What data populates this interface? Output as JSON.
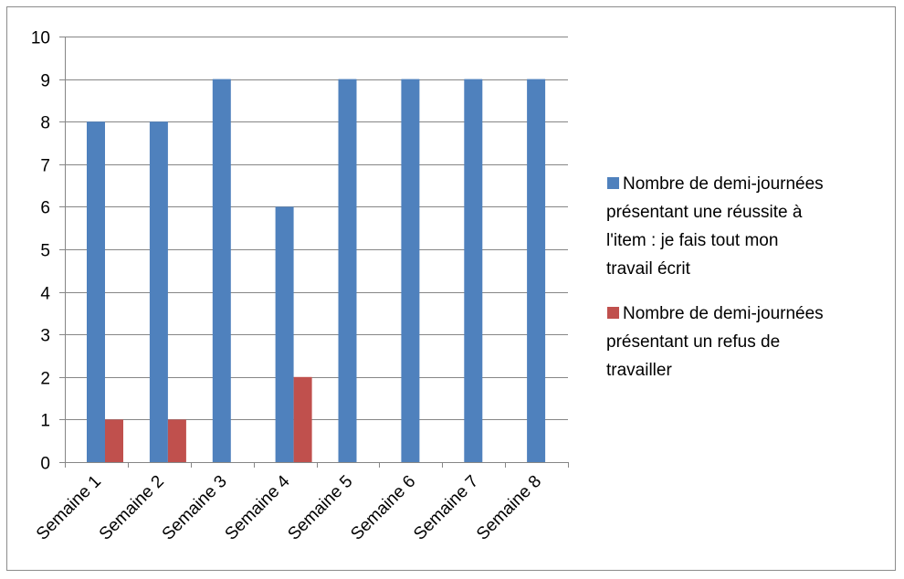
{
  "chart_data": {
    "type": "bar",
    "title": "",
    "xlabel": "",
    "ylabel": "",
    "categories": [
      "Semaine 1",
      "Semaine 2",
      "Semaine 3",
      "Semaine 4",
      "Semaine 5",
      "Semaine 6",
      "Semaine 7",
      "Semaine 8"
    ],
    "series": [
      {
        "name": "Nombre de demi-journées présentant une réussite à l'item : je fais tout mon travail écrit",
        "legend_lines": [
          "Nombre de demi-journées",
          "présentant une réussite à",
          "l'item : je fais tout mon",
          "travail écrit"
        ],
        "color": "#4f81bd",
        "values": [
          8,
          8,
          9,
          6,
          9,
          9,
          9,
          9
        ]
      },
      {
        "name": "Nombre de demi-journées présentant un refus de travailler",
        "legend_lines": [
          "Nombre de demi-journées",
          "présentant un refus de",
          "travailler"
        ],
        "color": "#c0504d",
        "values": [
          1,
          1,
          0,
          2,
          0,
          0,
          0,
          0
        ]
      }
    ],
    "ylim": [
      0,
      10
    ],
    "yticks": [
      0,
      1,
      2,
      3,
      4,
      5,
      6,
      7,
      8,
      9,
      10
    ],
    "grid": true,
    "legend_position": "right"
  }
}
